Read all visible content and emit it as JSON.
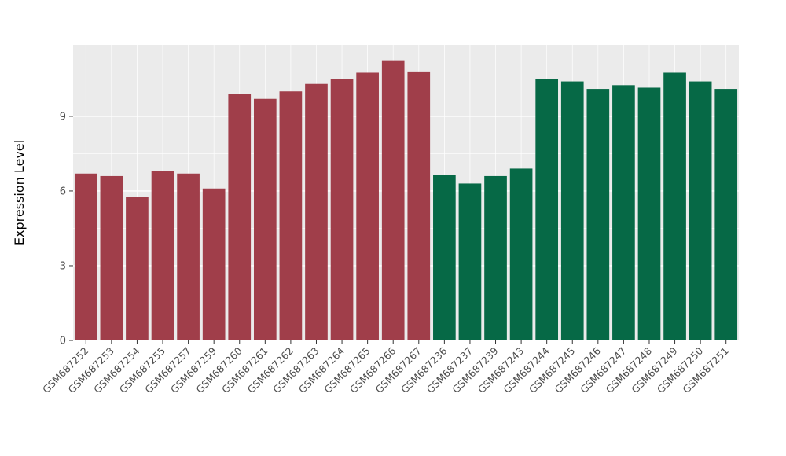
{
  "chart_data": {
    "type": "bar",
    "title": "",
    "xlabel": "",
    "ylabel": "Expression Level",
    "ylim": [
      0,
      11.87
    ],
    "yticks": [
      0,
      3,
      6,
      9
    ],
    "yticks_minor": [
      1.5,
      4.5,
      7.5,
      10.5
    ],
    "grid": true,
    "legend_position": "none",
    "panel_background": "#EBEBEB",
    "categories": [
      "GSM687252",
      "GSM687253",
      "GSM687254",
      "GSM687255",
      "GSM687257",
      "GSM687259",
      "GSM687260",
      "GSM687261",
      "GSM687262",
      "GSM687263",
      "GSM687264",
      "GSM687265",
      "GSM687266",
      "GSM687267",
      "GSM687236",
      "GSM687237",
      "GSM687239",
      "GSM687243",
      "GSM687244",
      "GSM687245",
      "GSM687246",
      "GSM687247",
      "GSM687248",
      "GSM687249",
      "GSM687250",
      "GSM687251"
    ],
    "values": [
      6.7,
      6.6,
      5.75,
      6.8,
      6.7,
      6.1,
      9.9,
      9.7,
      10.0,
      10.3,
      10.5,
      10.75,
      11.25,
      10.8,
      6.65,
      6.3,
      6.6,
      6.9,
      10.5,
      10.4,
      10.1,
      10.25,
      10.15,
      10.75,
      10.4,
      10.1
    ],
    "groups": [
      "A",
      "A",
      "A",
      "A",
      "A",
      "A",
      "A",
      "A",
      "A",
      "A",
      "A",
      "A",
      "A",
      "A",
      "B",
      "B",
      "B",
      "B",
      "B",
      "B",
      "B",
      "B",
      "B",
      "B",
      "B",
      "B"
    ],
    "group_colors": {
      "A": "#A03E4A",
      "B": "#066946"
    }
  }
}
